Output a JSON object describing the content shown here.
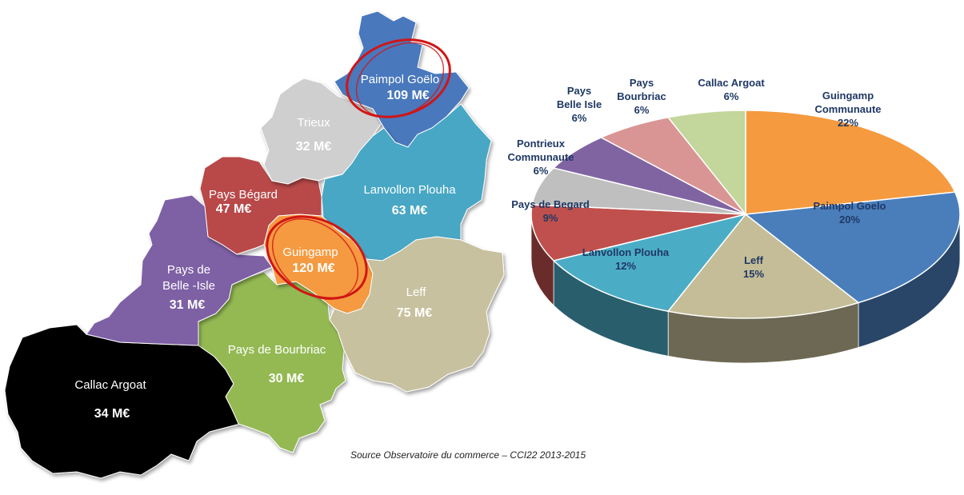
{
  "colors": {
    "paimpol": "#4a78bd",
    "trieux": "#cfcfcf",
    "lanvollon": "#46a7c4",
    "pays_begard": "#b94a48",
    "guingamp": "#f59a3f",
    "belle_isle": "#7e60a5",
    "leff": "#c8c19f",
    "bourbriac": "#94b953",
    "callac": "#000000",
    "highlight": "#d11515"
  },
  "map": {
    "regions": {
      "paimpol": {
        "name": "Paimpol Goëlo",
        "value": "109 M€"
      },
      "trieux": {
        "name": "Trieux",
        "value": "32 M€"
      },
      "lanvollon": {
        "name": "Lanvollon Plouha",
        "value": "63 M€"
      },
      "pays_begard": {
        "name": "Pays Bégard",
        "value": "47 M€"
      },
      "guingamp": {
        "name": "Guingamp",
        "value": "120 M€"
      },
      "belle_isle": {
        "name_line1": "Pays de",
        "name_line2": "Belle -Isle",
        "value": "31 M€"
      },
      "leff": {
        "name": "Leff",
        "value": "75 M€"
      },
      "bourbriac": {
        "name": "Pays de Bourbriac",
        "value": "30 M€"
      },
      "callac": {
        "name": "Callac Argoat",
        "value": "34 M€"
      }
    }
  },
  "chart_data": {
    "type": "pie",
    "slices": [
      {
        "label": "Guingamp Communaute",
        "label_lines": [
          "Guingamp",
          "Communaute"
        ],
        "percent_text": "22%",
        "value": 22,
        "color": "#f59a3f"
      },
      {
        "label": "Paimpol Goelo",
        "label_lines": [
          "Paimpol Goelo"
        ],
        "percent_text": "20%",
        "value": 20,
        "color": "#4a7ebb"
      },
      {
        "label": "Leff",
        "label_lines": [
          "Leff"
        ],
        "percent_text": "15%",
        "value": 15,
        "color": "#c4bd97"
      },
      {
        "label": "Lanvollon Plouha",
        "label_lines": [
          "Lanvollon Plouha"
        ],
        "percent_text": "12%",
        "value": 12,
        "color": "#4bacc6"
      },
      {
        "label": "Pays de Begard",
        "label_lines": [
          "Pays de Begard"
        ],
        "percent_text": "9%",
        "value": 9,
        "color": "#c0504d"
      },
      {
        "label": "Pontrieux Communaute",
        "label_lines": [
          "Pontrieux",
          "Communaute"
        ],
        "percent_text": "6%",
        "value": 6,
        "color": "#bfbfbf"
      },
      {
        "label": "Pays Belle Isle",
        "label_lines": [
          "Pays",
          "Belle Isle"
        ],
        "percent_text": "6%",
        "value": 6,
        "color": "#8064a2"
      },
      {
        "label": "Pays Bourbriac",
        "label_lines": [
          "Pays",
          "Bourbriac"
        ],
        "percent_text": "6%",
        "value": 6,
        "color": "#d99594"
      },
      {
        "label": "Callac Argoat",
        "label_lines": [
          "Callac Argoat"
        ],
        "percent_text": "6%",
        "value": 6,
        "color": "#c3d69b"
      }
    ]
  },
  "source": "Source Observatoire du commerce – CCI22 2013-2015"
}
